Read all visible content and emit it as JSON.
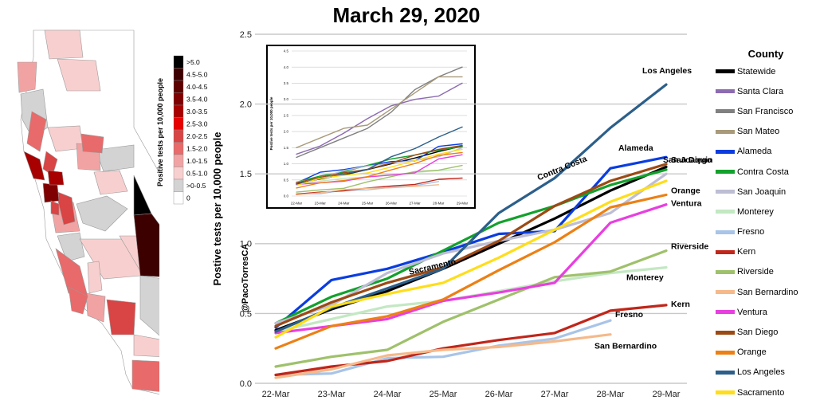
{
  "title": "March 29, 2020",
  "credit": "@PacoTorresCA",
  "map": {
    "legend_title": "Positive tests per 10,000 people",
    "bins": [
      {
        "label": ">5.0",
        "color": "#000000"
      },
      {
        "label": "4.5-5.0",
        "color": "#3d0000"
      },
      {
        "label": "4.0-4.5",
        "color": "#5c0000"
      },
      {
        "label": "3.5-4.0",
        "color": "#7f0000"
      },
      {
        "label": "3.0-3.5",
        "color": "#a80000"
      },
      {
        "label": "2.5-3.0",
        "color": "#e60000"
      },
      {
        "label": "2.0-2.5",
        "color": "#d94444"
      },
      {
        "label": "1.5-2.0",
        "color": "#e86a6a"
      },
      {
        "label": "1.0-1.5",
        "color": "#f1a3a3"
      },
      {
        "label": "0.5-1.0",
        "color": "#f8cfcf"
      },
      {
        "label": ">0-0.5",
        "color": "#d3d3d3"
      },
      {
        "label": "0",
        "color": "#ffffff"
      }
    ]
  },
  "legend": {
    "title": "County"
  },
  "chart_data": [
    {
      "type": "line",
      "title": "March 29, 2020",
      "ylabel": "Postive tests per 10,000 people",
      "xlabel": "",
      "ylim": [
        0,
        2.5
      ],
      "yticks": [
        "0.0",
        "0.5",
        "1.0",
        "1.5",
        "2.0",
        "2.5"
      ],
      "grid": true,
      "categories": [
        "22-Mar",
        "23-Mar",
        "24-Mar",
        "25-Mar",
        "26-Mar",
        "27-Mar",
        "28-Mar",
        "29-Mar"
      ],
      "series": [
        {
          "name": "Statewide",
          "color": "#000000",
          "values": [
            0.38,
            0.53,
            0.66,
            0.82,
            1.0,
            1.18,
            1.38,
            1.55
          ]
        },
        {
          "name": "Santa Clara",
          "color": "#8c6bb1",
          "values": [
            null,
            null,
            null,
            null,
            null,
            null,
            null,
            null
          ]
        },
        {
          "name": "San Francisco",
          "color": "#808080",
          "values": [
            null,
            null,
            null,
            null,
            null,
            null,
            null,
            null
          ]
        },
        {
          "name": "San Mateo",
          "color": "#a89a7a",
          "values": [
            null,
            null,
            null,
            null,
            null,
            null,
            null,
            null
          ]
        },
        {
          "name": "Alameda",
          "color": "#0a3de0",
          "values": [
            0.4,
            0.74,
            0.82,
            0.94,
            1.07,
            1.09,
            1.54,
            1.62
          ],
          "label": "Alameda"
        },
        {
          "name": "Contra Costa",
          "color": "#12a12c",
          "values": [
            0.43,
            0.62,
            0.75,
            0.95,
            1.15,
            1.27,
            1.42,
            1.53
          ],
          "label": "Contra Costa"
        },
        {
          "name": "San Joaquin",
          "color": "#bdbdd4",
          "values": [
            0.43,
            0.56,
            0.79,
            0.93,
            1.02,
            1.1,
            1.22,
            1.5
          ],
          "label": "San Joaquin"
        },
        {
          "name": "Monterey",
          "color": "#c3e8c3",
          "values": [
            0.37,
            0.46,
            0.55,
            0.59,
            0.66,
            0.73,
            0.79,
            0.83
          ],
          "label": "Monterey"
        },
        {
          "name": "Fresno",
          "color": "#a8c4e8",
          "values": [
            0.06,
            0.07,
            0.18,
            0.19,
            0.27,
            0.32,
            0.45,
            null
          ],
          "label": "Fresno"
        },
        {
          "name": "Kern",
          "color": "#c0261a",
          "values": [
            0.06,
            0.12,
            0.16,
            0.25,
            0.31,
            0.36,
            0.52,
            0.56
          ],
          "label": "Kern"
        },
        {
          "name": "Riverside",
          "color": "#9fc16b",
          "values": [
            0.12,
            0.19,
            0.24,
            0.44,
            0.6,
            0.76,
            0.8,
            0.95
          ],
          "label": "Riverside"
        },
        {
          "name": "San Bernardino",
          "color": "#f5b98a",
          "values": [
            0.04,
            0.1,
            0.2,
            0.24,
            0.26,
            0.3,
            0.35,
            null
          ],
          "label": "San Bernardino"
        },
        {
          "name": "Ventura",
          "color": "#e83fe0",
          "values": [
            0.36,
            0.41,
            0.46,
            0.59,
            0.65,
            0.72,
            1.15,
            1.28
          ],
          "label": "Ventura"
        },
        {
          "name": "San Diego",
          "color": "#9c4a14",
          "values": [
            0.41,
            0.58,
            0.72,
            0.83,
            1.02,
            1.27,
            1.45,
            1.57
          ],
          "label": "San Diego"
        },
        {
          "name": "Orange",
          "color": "#ec8014",
          "values": [
            0.25,
            0.41,
            0.48,
            0.6,
            0.81,
            1.01,
            1.26,
            1.35
          ],
          "label": "Orange"
        },
        {
          "name": "Los Angeles",
          "color": "#2c5f8a",
          "values": [
            0.37,
            0.54,
            0.68,
            0.82,
            1.22,
            1.47,
            1.83,
            2.14
          ],
          "label": "Los Angeles"
        },
        {
          "name": "Sacramento",
          "color": "#ffdd1a",
          "values": [
            0.33,
            0.55,
            0.64,
            0.72,
            0.9,
            1.1,
            1.3,
            1.45
          ],
          "label": "Sacramento"
        }
      ]
    },
    {
      "type": "line",
      "title": "",
      "ylabel": "Postive tests per 10,000 people",
      "ylim": [
        0,
        4.5
      ],
      "yticks": [
        "0.0",
        "0.5",
        "1.0",
        "1.5",
        "2.0",
        "2.5",
        "3.0",
        "3.5",
        "4.0",
        "4.5"
      ],
      "grid": true,
      "categories": [
        "22-Mar",
        "23-Mar",
        "24-Mar",
        "25-Mar",
        "26-Mar",
        "27-Mar",
        "28-Mar",
        "29-Mar"
      ],
      "series": [
        {
          "name": "Statewide",
          "color": "#000000",
          "values": [
            0.38,
            0.53,
            0.66,
            0.82,
            1.0,
            1.18,
            1.38,
            1.55
          ]
        },
        {
          "name": "Santa Clara",
          "color": "#8c6bb1",
          "values": [
            1.3,
            1.55,
            1.95,
            2.4,
            2.8,
            3.0,
            3.1,
            3.5
          ]
        },
        {
          "name": "San Francisco",
          "color": "#808080",
          "values": [
            1.2,
            1.5,
            1.8,
            2.1,
            2.6,
            3.3,
            3.7,
            4.0
          ]
        },
        {
          "name": "San Mateo",
          "color": "#a89a7a",
          "values": [
            1.5,
            1.8,
            2.1,
            2.2,
            2.7,
            3.2,
            3.7,
            3.7
          ]
        },
        {
          "name": "Alameda",
          "color": "#0a3de0",
          "values": [
            0.4,
            0.74,
            0.82,
            0.94,
            1.07,
            1.09,
            1.54,
            1.62
          ]
        },
        {
          "name": "Contra Costa",
          "color": "#12a12c",
          "values": [
            0.43,
            0.62,
            0.75,
            0.95,
            1.15,
            1.27,
            1.42,
            1.53
          ]
        },
        {
          "name": "San Joaquin",
          "color": "#bdbdd4",
          "values": [
            0.43,
            0.56,
            0.79,
            0.93,
            1.02,
            1.1,
            1.22,
            1.5
          ]
        },
        {
          "name": "Monterey",
          "color": "#c3e8c3",
          "values": [
            0.37,
            0.46,
            0.55,
            0.59,
            0.66,
            0.73,
            0.79,
            0.83
          ]
        },
        {
          "name": "Fresno",
          "color": "#a8c4e8",
          "values": [
            0.06,
            0.07,
            0.18,
            0.19,
            0.27,
            0.32,
            0.45,
            null
          ]
        },
        {
          "name": "Kern",
          "color": "#c0261a",
          "values": [
            0.06,
            0.12,
            0.16,
            0.25,
            0.31,
            0.36,
            0.52,
            0.56
          ]
        },
        {
          "name": "Riverside",
          "color": "#9fc16b",
          "values": [
            0.12,
            0.19,
            0.24,
            0.44,
            0.6,
            0.76,
            0.8,
            0.95
          ]
        },
        {
          "name": "San Bernardino",
          "color": "#f5b98a",
          "values": [
            0.04,
            0.1,
            0.2,
            0.24,
            0.26,
            0.3,
            0.35,
            null
          ]
        },
        {
          "name": "Ventura",
          "color": "#e83fe0",
          "values": [
            0.36,
            0.41,
            0.46,
            0.59,
            0.65,
            0.72,
            1.15,
            1.28
          ]
        },
        {
          "name": "San Diego",
          "color": "#9c4a14",
          "values": [
            0.41,
            0.58,
            0.72,
            0.83,
            1.02,
            1.27,
            1.45,
            1.57
          ]
        },
        {
          "name": "Orange",
          "color": "#ec8014",
          "values": [
            0.25,
            0.41,
            0.48,
            0.6,
            0.81,
            1.01,
            1.26,
            1.35
          ]
        },
        {
          "name": "Los Angeles",
          "color": "#2c5f8a",
          "values": [
            0.37,
            0.54,
            0.68,
            0.82,
            1.22,
            1.47,
            1.83,
            2.14
          ]
        },
        {
          "name": "Sacramento",
          "color": "#ffdd1a",
          "values": [
            0.33,
            0.55,
            0.64,
            0.72,
            0.9,
            1.1,
            1.3,
            1.45
          ]
        }
      ]
    }
  ]
}
